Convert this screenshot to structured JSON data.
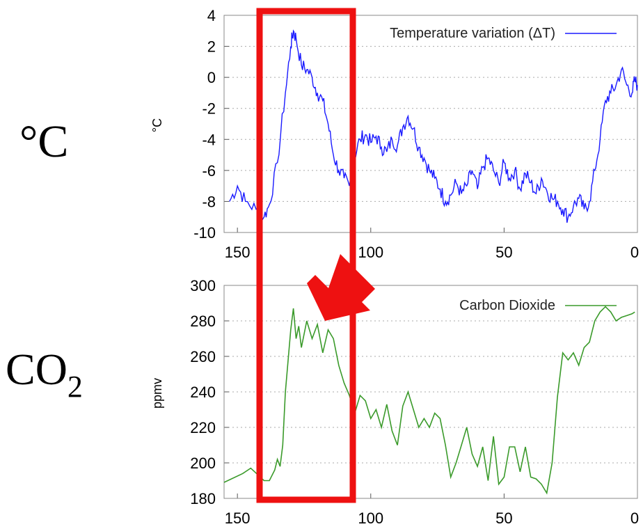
{
  "labels": {
    "temperature_unit": "°C",
    "co2_prefix": "CO",
    "co2_subscript": "2"
  },
  "colors": {
    "temperature": "#1a1aff",
    "co2": "#3a9a2a",
    "highlight": "#ee1111",
    "grid": "#aaaaaa"
  },
  "chart_data": [
    {
      "type": "line",
      "ylabel": "°C",
      "xlabel": "",
      "x_reversed": true,
      "xlim": [
        155,
        0
      ],
      "ylim": [
        -10,
        4
      ],
      "yticks": [
        4,
        2,
        0,
        -2,
        -4,
        -6,
        -8,
        -10
      ],
      "xticks": [
        150,
        100,
        50,
        0
      ],
      "xtick_labels": [
        "150",
        "100",
        "50",
        "0"
      ],
      "grid": "horizontal-dotted",
      "legend": "top-right",
      "series": [
        {
          "name": "Temperature variation (ΔT)",
          "x": [
            153,
            150,
            147,
            143,
            140,
            138,
            135,
            132,
            130,
            129,
            128,
            126,
            124,
            122,
            120,
            118,
            116,
            114,
            112,
            110,
            108,
            106,
            104,
            102,
            100,
            98,
            96,
            94,
            92,
            90,
            88,
            86,
            84,
            82,
            80,
            78,
            76,
            74,
            72,
            70,
            68,
            66,
            64,
            62,
            60,
            58,
            56,
            54,
            52,
            50,
            48,
            46,
            44,
            42,
            40,
            38,
            36,
            34,
            32,
            30,
            28,
            26,
            24,
            22,
            20,
            18,
            16,
            14,
            12,
            10,
            8,
            6,
            4,
            2,
            1,
            0
          ],
          "values": [
            -8.0,
            -7.0,
            -8.0,
            -8.5,
            -9.0,
            -8.2,
            -5.5,
            -1.0,
            2.0,
            3.0,
            2.5,
            0.8,
            0.5,
            0.0,
            -1.0,
            -1.5,
            -3.0,
            -5.0,
            -6.0,
            -6.5,
            -7.0,
            -5.0,
            -4.0,
            -3.7,
            -4.2,
            -3.8,
            -4.5,
            -4.8,
            -4.0,
            -4.4,
            -3.2,
            -2.5,
            -3.3,
            -4.5,
            -5.2,
            -6.0,
            -6.5,
            -7.2,
            -8.0,
            -7.6,
            -6.8,
            -7.5,
            -7.0,
            -6.0,
            -7.2,
            -5.8,
            -5.2,
            -6.0,
            -6.8,
            -5.5,
            -6.5,
            -6.0,
            -7.2,
            -6.2,
            -6.8,
            -7.5,
            -6.5,
            -7.3,
            -7.8,
            -8.0,
            -8.5,
            -9.0,
            -8.3,
            -7.8,
            -8.5,
            -8.0,
            -6.0,
            -4.0,
            -1.5,
            -1.0,
            -0.5,
            0.5,
            -0.5,
            -1.0,
            -0.2,
            -0.5
          ]
        }
      ]
    },
    {
      "type": "line",
      "ylabel": "ppmv",
      "xlabel": "",
      "x_reversed": true,
      "xlim": [
        155,
        0
      ],
      "ylim": [
        180,
        300
      ],
      "yticks": [
        300,
        280,
        260,
        240,
        220,
        200,
        180
      ],
      "xticks": [
        150,
        100,
        50,
        0
      ],
      "xtick_labels": [
        "150",
        "100",
        "50",
        "0"
      ],
      "grid": "horizontal-dotted",
      "legend": "top-right",
      "series": [
        {
          "name": "Carbon Dioxide",
          "x": [
            155,
            148,
            145,
            140,
            138,
            136,
            135,
            134,
            133,
            132,
            130,
            129,
            128,
            127,
            126,
            124,
            122,
            120,
            118,
            116,
            114,
            112,
            110,
            108,
            106,
            104,
            102,
            100,
            98,
            96,
            94,
            92,
            90,
            88,
            86,
            84,
            82,
            80,
            78,
            76,
            74,
            72,
            70,
            68,
            66,
            64,
            62,
            60,
            58,
            56,
            54,
            52,
            50,
            48,
            46,
            44,
            42,
            40,
            38,
            36,
            34,
            32,
            30,
            28,
            26,
            24,
            22,
            20,
            18,
            16,
            14,
            12,
            10,
            8,
            6,
            4,
            2,
            1
          ],
          "values": [
            189,
            194,
            197,
            190,
            190,
            196,
            202,
            198,
            210,
            240,
            275,
            287,
            270,
            277,
            265,
            280,
            270,
            278,
            262,
            275,
            270,
            255,
            245,
            238,
            228,
            238,
            235,
            225,
            230,
            220,
            233,
            218,
            210,
            232,
            240,
            230,
            220,
            225,
            220,
            228,
            225,
            210,
            192,
            200,
            210,
            220,
            205,
            198,
            209,
            190,
            215,
            188,
            192,
            209,
            209,
            195,
            209,
            192,
            191,
            188,
            183,
            200,
            237,
            262,
            258,
            262,
            255,
            265,
            268,
            280,
            285,
            288,
            285,
            280,
            282,
            283,
            284,
            285
          ]
        }
      ]
    }
  ]
}
